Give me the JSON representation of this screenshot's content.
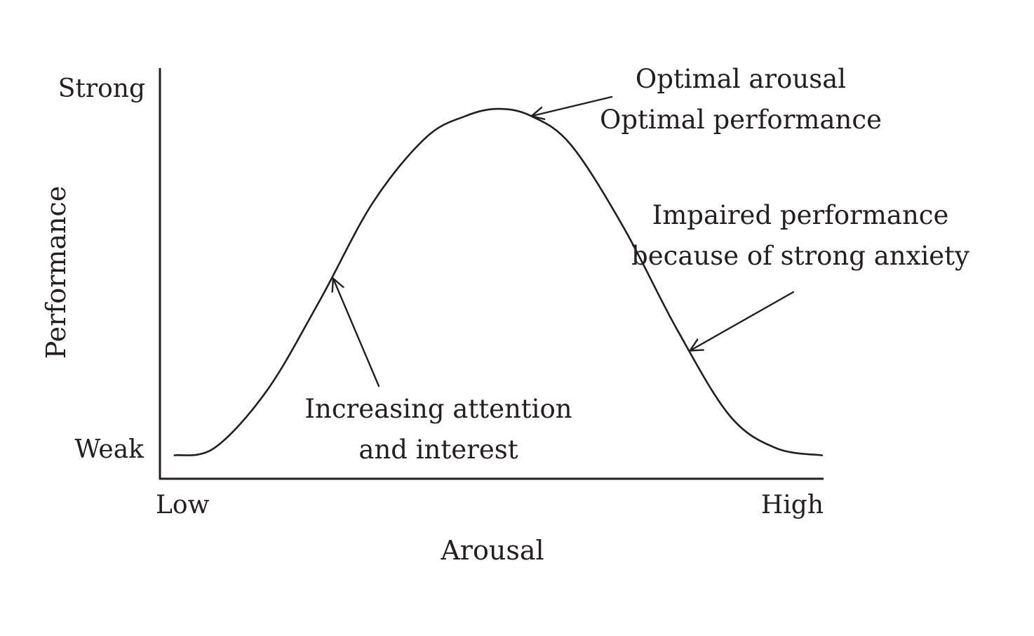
{
  "chart_data": {
    "type": "line",
    "title": "",
    "xlabel": "Arousal",
    "ylabel": "Performance",
    "x_ticks": [
      "Low",
      "High"
    ],
    "y_ticks": [
      "Weak",
      "Strong"
    ],
    "xlim": [
      0,
      1
    ],
    "ylim": [
      0,
      1
    ],
    "grid": false,
    "series": [
      {
        "shape": "inverted-U",
        "x": [
          0.02,
          0.08,
          0.16,
          0.24,
          0.32,
          0.4,
          0.46,
          0.51,
          0.56,
          0.62,
          0.7,
          0.78,
          0.86,
          0.93,
          1.0
        ],
        "y": [
          0.03,
          0.05,
          0.21,
          0.46,
          0.73,
          0.91,
          0.97,
          0.99,
          0.97,
          0.89,
          0.66,
          0.38,
          0.14,
          0.05,
          0.03
        ]
      }
    ],
    "annotations": [
      {
        "id": "peak",
        "lines": [
          "Optimal arousal",
          "Optimal performance"
        ],
        "target_x": 0.56,
        "target_y": 0.97
      },
      {
        "id": "rising",
        "lines": [
          "Increasing attention",
          "and interest"
        ],
        "target_x": 0.26,
        "target_y": 0.52
      },
      {
        "id": "falling",
        "lines": [
          "Impaired performance",
          "because of strong anxiety"
        ],
        "target_x": 0.8,
        "target_y": 0.32
      }
    ]
  }
}
